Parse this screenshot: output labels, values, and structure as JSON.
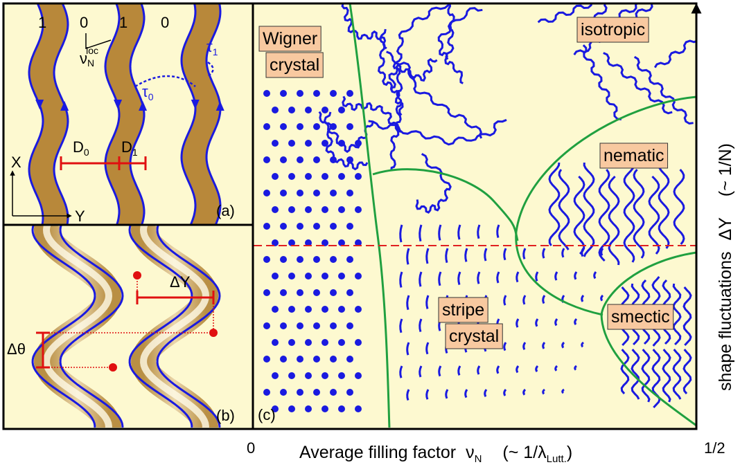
{
  "panel_a": {
    "label": "(a)",
    "occupations": [
      "1",
      "0",
      "1",
      "0"
    ],
    "local_filling": {
      "symbol": "ν",
      "sub": "N",
      "sup": "loc"
    },
    "tau_1": {
      "symbol": "τ",
      "sub": "1"
    },
    "tau_0": {
      "symbol": "τ",
      "sub": "0"
    },
    "d_0": {
      "symbol": "D",
      "sub": "0"
    },
    "d_1": {
      "symbol": "D",
      "sub": "1"
    },
    "axis_x": "X",
    "axis_y": "Y"
  },
  "panel_b": {
    "label": "(b)",
    "delta_y": "ΔY",
    "delta_theta": "Δθ"
  },
  "panel_c": {
    "label": "(c)",
    "phases": [
      {
        "lines": [
          "Wigner",
          "crystal"
        ]
      },
      {
        "lines": [
          "isotropic"
        ]
      },
      {
        "lines": [
          "nematic"
        ]
      },
      {
        "lines": [
          "stripe",
          "crystal"
        ]
      },
      {
        "lines": [
          "smectic"
        ]
      }
    ]
  },
  "axes": {
    "x_origin": "0",
    "x_end": "1/2",
    "x_label": {
      "text": "Average filling factor",
      "symbol": "ν",
      "sub": "N",
      "open": "(~ 1/λ",
      "open_sub": "Lutt.",
      "close": ")"
    },
    "y_label": {
      "text": "shape fluctuations",
      "symbol": "ΔY",
      "note": "(~ 1/N)"
    }
  }
}
